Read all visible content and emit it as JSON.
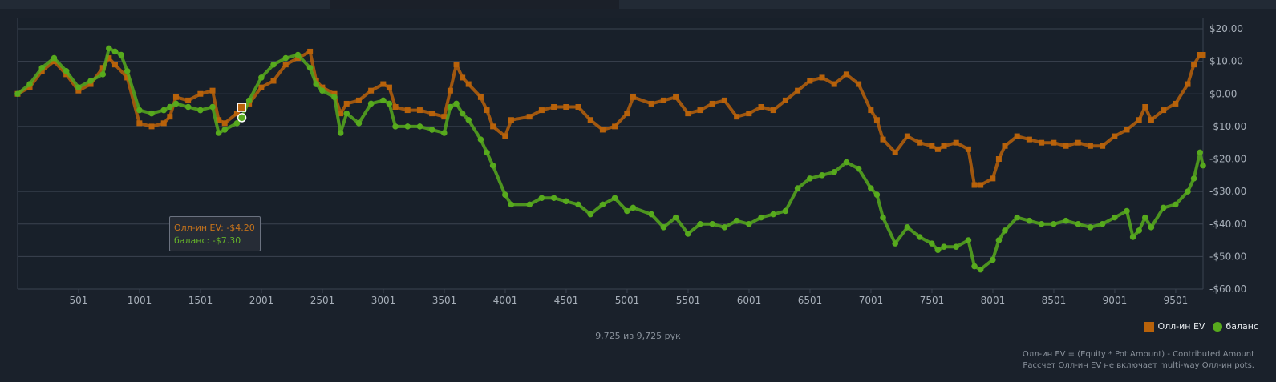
{
  "footer": {
    "hands_count": "9,725 из 9,725 рук",
    "formula_line1": "Олл-ин EV = (Equity * Pot Amount) - Contributed Amount",
    "formula_line2": "Рассчет Олл-ин EV не включает multi-way Олл-ин pots."
  },
  "tooltip": {
    "ev_label": "Олл-ин EV:",
    "ev_value": "-$4.20",
    "balance_label": "баланс:",
    "balance_value": "-$7.30",
    "hand": 1840
  },
  "colors": {
    "ev": "#b8620a",
    "balance": "#57aa1d",
    "grid": "#3a4350",
    "background": "#1a212b"
  },
  "chart_data": {
    "type": "line",
    "title": "",
    "xlabel": "",
    "ylabel": "",
    "x_ticks": [
      501,
      1001,
      1501,
      2001,
      2501,
      3001,
      3501,
      4001,
      4501,
      5001,
      5501,
      6001,
      6501,
      7001,
      7501,
      8001,
      8501,
      9001,
      9501
    ],
    "y_tick_labels": [
      "$20.00",
      "$10.00",
      "$0.00",
      "-$10.00",
      "-$20.00",
      "-$30.00",
      "-$40.00",
      "-$50.00",
      "-$60.00"
    ],
    "y_ticks": [
      20,
      10,
      0,
      -10,
      -20,
      -30,
      -40,
      -50,
      -60
    ],
    "xlim": [
      1,
      9725
    ],
    "ylim": [
      -60,
      20
    ],
    "y_axis_side": "right",
    "legend_position": "bottom-right",
    "series": [
      {
        "name": "Олл-ин EV",
        "marker": "square",
        "points": [
          [
            1,
            0
          ],
          [
            100,
            2
          ],
          [
            200,
            7
          ],
          [
            300,
            10
          ],
          [
            400,
            6
          ],
          [
            500,
            1
          ],
          [
            600,
            3
          ],
          [
            700,
            8
          ],
          [
            750,
            11
          ],
          [
            800,
            9
          ],
          [
            900,
            5
          ],
          [
            1000,
            -9
          ],
          [
            1100,
            -10
          ],
          [
            1200,
            -9
          ],
          [
            1250,
            -7
          ],
          [
            1300,
            -1
          ],
          [
            1400,
            -2
          ],
          [
            1500,
            0
          ],
          [
            1600,
            1
          ],
          [
            1650,
            -8
          ],
          [
            1700,
            -9
          ],
          [
            1800,
            -6
          ],
          [
            1840,
            -4.2
          ],
          [
            1900,
            -3
          ],
          [
            2000,
            2
          ],
          [
            2100,
            4
          ],
          [
            2200,
            9
          ],
          [
            2300,
            11
          ],
          [
            2400,
            13
          ],
          [
            2450,
            4
          ],
          [
            2500,
            2
          ],
          [
            2600,
            0
          ],
          [
            2650,
            -6
          ],
          [
            2700,
            -3
          ],
          [
            2800,
            -2
          ],
          [
            2900,
            1
          ],
          [
            3000,
            3
          ],
          [
            3050,
            2
          ],
          [
            3100,
            -4
          ],
          [
            3200,
            -5
          ],
          [
            3300,
            -5
          ],
          [
            3400,
            -6
          ],
          [
            3500,
            -7
          ],
          [
            3550,
            1
          ],
          [
            3600,
            9
          ],
          [
            3650,
            5
          ],
          [
            3700,
            3
          ],
          [
            3800,
            -1
          ],
          [
            3850,
            -5
          ],
          [
            3900,
            -10
          ],
          [
            4000,
            -13
          ],
          [
            4050,
            -8
          ],
          [
            4200,
            -7
          ],
          [
            4300,
            -5
          ],
          [
            4400,
            -4
          ],
          [
            4500,
            -4
          ],
          [
            4600,
            -4
          ],
          [
            4700,
            -8
          ],
          [
            4800,
            -11
          ],
          [
            4900,
            -10
          ],
          [
            5000,
            -6
          ],
          [
            5050,
            -1
          ],
          [
            5200,
            -3
          ],
          [
            5300,
            -2
          ],
          [
            5400,
            -1
          ],
          [
            5500,
            -6
          ],
          [
            5600,
            -5
          ],
          [
            5700,
            -3
          ],
          [
            5800,
            -2
          ],
          [
            5900,
            -7
          ],
          [
            6000,
            -6
          ],
          [
            6100,
            -4
          ],
          [
            6200,
            -5
          ],
          [
            6300,
            -2
          ],
          [
            6400,
            1
          ],
          [
            6500,
            4
          ],
          [
            6600,
            5
          ],
          [
            6700,
            3
          ],
          [
            6800,
            6
          ],
          [
            6900,
            3
          ],
          [
            7000,
            -5
          ],
          [
            7050,
            -8
          ],
          [
            7100,
            -14
          ],
          [
            7200,
            -18
          ],
          [
            7300,
            -13
          ],
          [
            7400,
            -15
          ],
          [
            7500,
            -16
          ],
          [
            7550,
            -17
          ],
          [
            7600,
            -16
          ],
          [
            7700,
            -15
          ],
          [
            7800,
            -17
          ],
          [
            7850,
            -28
          ],
          [
            7900,
            -28
          ],
          [
            8000,
            -26
          ],
          [
            8050,
            -20
          ],
          [
            8100,
            -16
          ],
          [
            8200,
            -13
          ],
          [
            8300,
            -14
          ],
          [
            8400,
            -15
          ],
          [
            8500,
            -15
          ],
          [
            8600,
            -16
          ],
          [
            8700,
            -15
          ],
          [
            8800,
            -16
          ],
          [
            8900,
            -16
          ],
          [
            9000,
            -13
          ],
          [
            9100,
            -11
          ],
          [
            9200,
            -8
          ],
          [
            9250,
            -4
          ],
          [
            9300,
            -8
          ],
          [
            9400,
            -5
          ],
          [
            9500,
            -3
          ],
          [
            9600,
            3
          ],
          [
            9650,
            9
          ],
          [
            9700,
            12
          ],
          [
            9725,
            12
          ]
        ]
      },
      {
        "name": "баланс",
        "marker": "circle",
        "points": [
          [
            1,
            0
          ],
          [
            100,
            3
          ],
          [
            200,
            8
          ],
          [
            300,
            11
          ],
          [
            400,
            7
          ],
          [
            500,
            2
          ],
          [
            600,
            4
          ],
          [
            700,
            6
          ],
          [
            750,
            14
          ],
          [
            800,
            13
          ],
          [
            850,
            12
          ],
          [
            900,
            7
          ],
          [
            1000,
            -5
          ],
          [
            1100,
            -6
          ],
          [
            1200,
            -5
          ],
          [
            1250,
            -4
          ],
          [
            1300,
            -3
          ],
          [
            1400,
            -4
          ],
          [
            1500,
            -5
          ],
          [
            1600,
            -4
          ],
          [
            1650,
            -12
          ],
          [
            1700,
            -11
          ],
          [
            1800,
            -9
          ],
          [
            1840,
            -7.3
          ],
          [
            1900,
            -2
          ],
          [
            2000,
            5
          ],
          [
            2100,
            9
          ],
          [
            2200,
            11
          ],
          [
            2300,
            12
          ],
          [
            2400,
            8
          ],
          [
            2450,
            3
          ],
          [
            2500,
            1
          ],
          [
            2600,
            -1
          ],
          [
            2650,
            -12
          ],
          [
            2700,
            -6
          ],
          [
            2800,
            -9
          ],
          [
            2900,
            -3
          ],
          [
            3000,
            -2
          ],
          [
            3050,
            -3
          ],
          [
            3100,
            -10
          ],
          [
            3200,
            -10
          ],
          [
            3300,
            -10
          ],
          [
            3400,
            -11
          ],
          [
            3500,
            -12
          ],
          [
            3550,
            -4
          ],
          [
            3600,
            -3
          ],
          [
            3650,
            -6
          ],
          [
            3700,
            -8
          ],
          [
            3800,
            -14
          ],
          [
            3850,
            -18
          ],
          [
            3900,
            -22
          ],
          [
            4000,
            -31
          ],
          [
            4050,
            -34
          ],
          [
            4200,
            -34
          ],
          [
            4300,
            -32
          ],
          [
            4400,
            -32
          ],
          [
            4500,
            -33
          ],
          [
            4600,
            -34
          ],
          [
            4700,
            -37
          ],
          [
            4800,
            -34
          ],
          [
            4900,
            -32
          ],
          [
            5000,
            -36
          ],
          [
            5050,
            -35
          ],
          [
            5200,
            -37
          ],
          [
            5300,
            -41
          ],
          [
            5400,
            -38
          ],
          [
            5500,
            -43
          ],
          [
            5600,
            -40
          ],
          [
            5700,
            -40
          ],
          [
            5800,
            -41
          ],
          [
            5900,
            -39
          ],
          [
            6000,
            -40
          ],
          [
            6100,
            -38
          ],
          [
            6200,
            -37
          ],
          [
            6300,
            -36
          ],
          [
            6400,
            -29
          ],
          [
            6500,
            -26
          ],
          [
            6600,
            -25
          ],
          [
            6700,
            -24
          ],
          [
            6800,
            -21
          ],
          [
            6900,
            -23
          ],
          [
            7000,
            -29
          ],
          [
            7050,
            -31
          ],
          [
            7100,
            -38
          ],
          [
            7200,
            -46
          ],
          [
            7300,
            -41
          ],
          [
            7400,
            -44
          ],
          [
            7500,
            -46
          ],
          [
            7550,
            -48
          ],
          [
            7600,
            -47
          ],
          [
            7700,
            -47
          ],
          [
            7800,
            -45
          ],
          [
            7850,
            -53
          ],
          [
            7900,
            -54
          ],
          [
            8000,
            -51
          ],
          [
            8050,
            -45
          ],
          [
            8100,
            -42
          ],
          [
            8200,
            -38
          ],
          [
            8300,
            -39
          ],
          [
            8400,
            -40
          ],
          [
            8500,
            -40
          ],
          [
            8600,
            -39
          ],
          [
            8700,
            -40
          ],
          [
            8800,
            -41
          ],
          [
            8900,
            -40
          ],
          [
            9000,
            -38
          ],
          [
            9100,
            -36
          ],
          [
            9150,
            -44
          ],
          [
            9200,
            -42
          ],
          [
            9250,
            -38
          ],
          [
            9300,
            -41
          ],
          [
            9400,
            -35
          ],
          [
            9500,
            -34
          ],
          [
            9600,
            -30
          ],
          [
            9650,
            -26
          ],
          [
            9700,
            -18
          ],
          [
            9725,
            -22
          ]
        ]
      }
    ]
  }
}
